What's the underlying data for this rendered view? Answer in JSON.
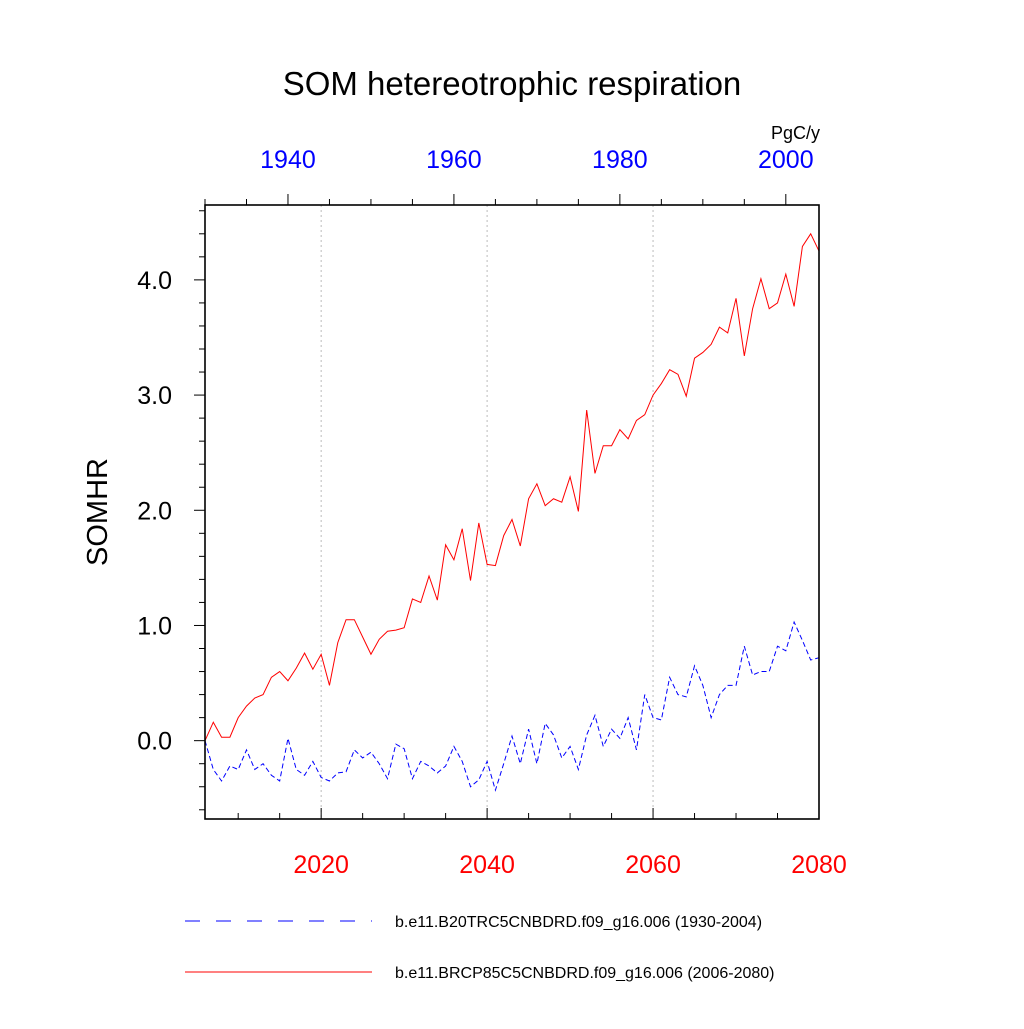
{
  "chart_data": {
    "type": "line",
    "title": "SOM hetereotrophic respiration",
    "units": "PgC/y",
    "ylabel": "SOMHR",
    "xlabel": "",
    "ylim": [
      -0.68,
      4.65
    ],
    "yticks": [
      "0.0",
      "1.0",
      "2.0",
      "3.0",
      "4.0"
    ],
    "grid": "vertical dotted lines at major bottom-axis ticks",
    "legend_position": "bottom",
    "x_bottom": {
      "range": [
        2006,
        2080
      ],
      "ticks": [
        "2020",
        "2040",
        "2060",
        "2080"
      ],
      "color": "#ff0000"
    },
    "x_top": {
      "range": [
        1930,
        2004
      ],
      "ticks": [
        "1940",
        "1960",
        "1980",
        "2000"
      ],
      "color": "#0000ff"
    },
    "series": [
      {
        "name": "b.e11.B20TRC5CNBDRD.f09_g16.006 (1930-2004)",
        "color": "#0000ff",
        "dash": "dashed",
        "axis": "top",
        "x": [
          1930,
          1931,
          1932,
          1933,
          1934,
          1935,
          1936,
          1937,
          1938,
          1939,
          1940,
          1941,
          1942,
          1943,
          1944,
          1945,
          1946,
          1947,
          1948,
          1949,
          1950,
          1951,
          1952,
          1953,
          1954,
          1955,
          1956,
          1957,
          1958,
          1959,
          1960,
          1961,
          1962,
          1963,
          1964,
          1965,
          1966,
          1967,
          1968,
          1969,
          1970,
          1971,
          1972,
          1973,
          1974,
          1975,
          1976,
          1977,
          1978,
          1979,
          1980,
          1981,
          1982,
          1983,
          1984,
          1985,
          1986,
          1987,
          1988,
          1989,
          1990,
          1991,
          1992,
          1993,
          1994,
          1995,
          1996,
          1997,
          1998,
          1999,
          2000,
          2001,
          2002,
          2003,
          2004
        ],
        "values": [
          0.0,
          -0.25,
          -0.35,
          -0.22,
          -0.25,
          -0.08,
          -0.25,
          -0.2,
          -0.3,
          -0.35,
          0.02,
          -0.25,
          -0.3,
          -0.18,
          -0.32,
          -0.35,
          -0.28,
          -0.27,
          -0.08,
          -0.15,
          -0.1,
          -0.2,
          -0.33,
          -0.03,
          -0.07,
          -0.33,
          -0.18,
          -0.22,
          -0.28,
          -0.22,
          -0.05,
          -0.18,
          -0.4,
          -0.34,
          -0.18,
          -0.43,
          -0.2,
          0.04,
          -0.2,
          0.1,
          -0.2,
          0.15,
          0.05,
          -0.15,
          -0.05,
          -0.25,
          0.05,
          0.22,
          -0.05,
          0.1,
          0.02,
          0.2,
          -0.08,
          0.4,
          0.2,
          0.18,
          0.55,
          0.4,
          0.38,
          0.65,
          0.48,
          0.2,
          0.4,
          0.48,
          0.48,
          0.82,
          0.57,
          0.6,
          0.6,
          0.82,
          0.78,
          1.03,
          0.87,
          0.7,
          0.72
        ]
      },
      {
        "name": "b.e11.BRCP85C5CNBDRD.f09_g16.006 (2006-2080)",
        "color": "#ff0000",
        "dash": "solid",
        "axis": "bottom",
        "x": [
          2006,
          2007,
          2008,
          2009,
          2010,
          2011,
          2012,
          2013,
          2014,
          2015,
          2016,
          2017,
          2018,
          2019,
          2020,
          2021,
          2022,
          2023,
          2024,
          2025,
          2026,
          2027,
          2028,
          2029,
          2030,
          2031,
          2032,
          2033,
          2034,
          2035,
          2036,
          2037,
          2038,
          2039,
          2040,
          2041,
          2042,
          2043,
          2044,
          2045,
          2046,
          2047,
          2048,
          2049,
          2050,
          2051,
          2052,
          2053,
          2054,
          2055,
          2056,
          2057,
          2058,
          2059,
          2060,
          2061,
          2062,
          2063,
          2064,
          2065,
          2066,
          2067,
          2068,
          2069,
          2070,
          2071,
          2072,
          2073,
          2074,
          2075,
          2076,
          2077,
          2078,
          2079,
          2080
        ],
        "values": [
          0.0,
          0.16,
          0.03,
          0.03,
          0.2,
          0.3,
          0.37,
          0.4,
          0.55,
          0.6,
          0.52,
          0.63,
          0.76,
          0.62,
          0.75,
          0.48,
          0.85,
          1.05,
          1.05,
          0.9,
          0.75,
          0.88,
          0.95,
          0.96,
          0.98,
          1.23,
          1.2,
          1.43,
          1.22,
          1.7,
          1.57,
          1.84,
          1.39,
          1.89,
          1.53,
          1.52,
          1.78,
          1.92,
          1.69,
          2.1,
          2.23,
          2.04,
          2.1,
          2.07,
          2.29,
          1.99,
          2.87,
          2.32,
          2.56,
          2.56,
          2.7,
          2.62,
          2.78,
          2.83,
          3.0,
          3.1,
          3.22,
          3.18,
          2.99,
          3.32,
          3.37,
          3.44,
          3.59,
          3.54,
          3.84,
          3.34,
          3.75,
          4.01,
          3.75,
          3.8,
          4.05,
          3.77,
          4.29,
          4.4,
          4.25
        ]
      }
    ]
  }
}
